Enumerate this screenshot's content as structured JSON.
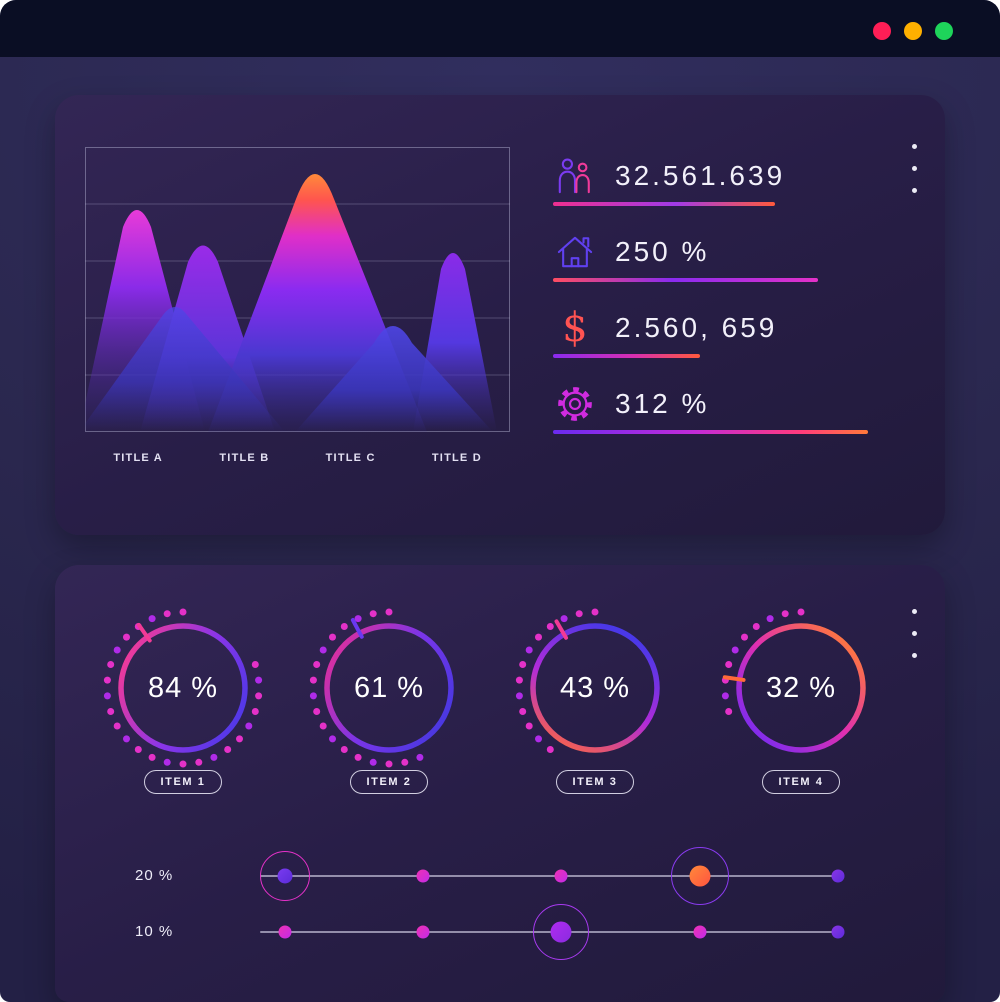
{
  "window": {
    "traffic_lights": [
      "#ff1e56",
      "#ffb000",
      "#1ed45a"
    ]
  },
  "top_card": {
    "chart_labels": [
      "TITLE A",
      "TITLE B",
      "TITLE C",
      "TITLE D"
    ],
    "stats": [
      {
        "icon": "people-icon",
        "value": "32.561.639"
      },
      {
        "icon": "home-icon",
        "value": "250 %"
      },
      {
        "icon": "dollar-icon",
        "value": "2.560, 659"
      },
      {
        "icon": "gear-icon",
        "value": "312 %"
      }
    ]
  },
  "bottom_card": {
    "gauges": [
      {
        "value_label": "84 %",
        "pct": 84,
        "item": "ITEM 1",
        "tick_deg": -125,
        "accent": "#f23a96"
      },
      {
        "value_label": "61 %",
        "pct": 61,
        "item": "ITEM 2",
        "tick_deg": -118,
        "accent": "#6a38f0"
      },
      {
        "value_label": "43 %",
        "pct": 43,
        "item": "ITEM 3",
        "tick_deg": -120,
        "accent": "#f23a96"
      },
      {
        "value_label": "32 %",
        "pct": 32,
        "item": "ITEM 4",
        "tick_deg": 188,
        "accent": "#ff6a3a"
      }
    ],
    "sliders": [
      {
        "label": "20 %"
      },
      {
        "label": "10 %"
      }
    ]
  },
  "chart_data": [
    {
      "type": "area",
      "style": "overlapping-gradient-peaks",
      "categories": [
        "TITLE A",
        "TITLE B",
        "TITLE C",
        "TITLE D"
      ],
      "series": [
        {
          "name": "peak-height-percent",
          "values": [
            80,
            72,
            100,
            68
          ]
        }
      ],
      "ylim": [
        0,
        100
      ],
      "grid": true,
      "legend": false
    },
    {
      "type": "pie",
      "style": "gauge-rings",
      "categories": [
        "ITEM 1",
        "ITEM 2",
        "ITEM 3",
        "ITEM 4"
      ],
      "values": [
        84,
        61,
        43,
        32
      ],
      "unit": "%"
    },
    {
      "type": "table",
      "style": "kpi-stats",
      "rows": [
        [
          "people",
          "32.561.639"
        ],
        [
          "home",
          "250 %"
        ],
        [
          "dollar",
          "2.560, 659"
        ],
        [
          "gear",
          "312 %"
        ]
      ]
    },
    {
      "type": "scatter",
      "style": "dot-sliders",
      "rows": [
        {
          "label": "20 %",
          "points": 5,
          "highlighted_points": [
            0,
            3
          ]
        },
        {
          "label": "10 %",
          "points": 5,
          "highlighted_points": [
            2
          ]
        }
      ]
    }
  ]
}
